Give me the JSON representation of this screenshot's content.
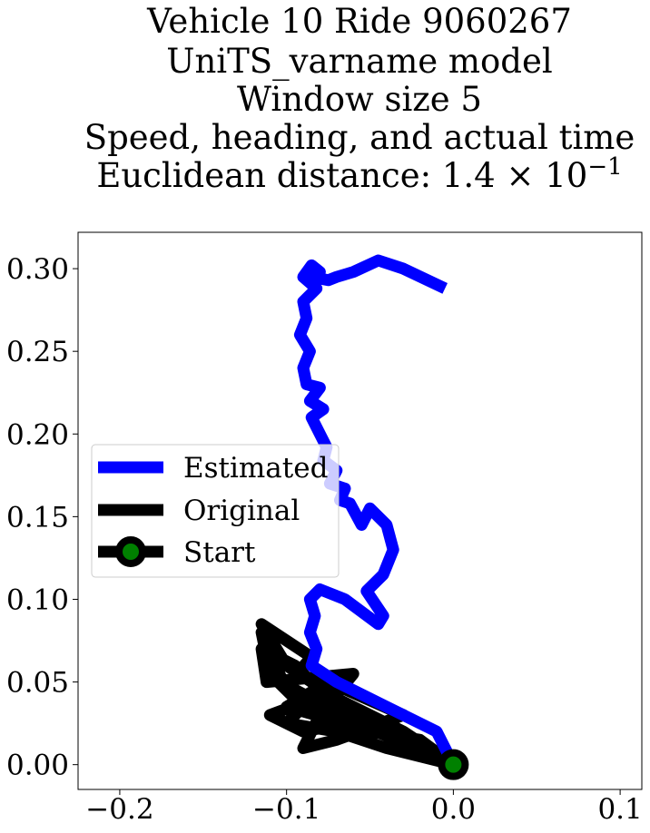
{
  "chart_data": {
    "type": "line",
    "title_lines": [
      "Vehicle 10 Ride 9060267",
      "UniTS_varname model",
      "Window size 5",
      "Speed, heading, and actual time",
      "Euclidean distance: 1.4 × 10"
    ],
    "title_exponent": "−1",
    "xlim": [
      -0.225,
      0.113
    ],
    "ylim": [
      -0.015,
      0.322
    ],
    "x_ticks": [
      -0.2,
      -0.1,
      0.0,
      0.1
    ],
    "x_tick_labels": [
      "−0.2",
      "−0.1",
      "0.0",
      "0.1"
    ],
    "y_ticks": [
      0.0,
      0.05,
      0.1,
      0.15,
      0.2,
      0.25,
      0.3
    ],
    "y_tick_labels": [
      "0.00",
      "0.05",
      "0.10",
      "0.15",
      "0.20",
      "0.25",
      "0.30"
    ],
    "grid": false,
    "legend_position": "center-left",
    "series": [
      {
        "name": "Original",
        "color": "#000000",
        "x": [
          0.0,
          -0.03,
          -0.07,
          -0.1,
          -0.115,
          -0.085,
          -0.1,
          -0.085,
          -0.07,
          -0.11,
          -0.09,
          -0.065,
          -0.1,
          -0.075,
          -0.03,
          -0.07,
          -0.09,
          -0.08,
          -0.06,
          -0.112,
          -0.115,
          -0.095,
          -0.08,
          -0.065,
          -0.02,
          -0.06,
          -0.1,
          -0.115,
          -0.11,
          -0.09,
          -0.05,
          -0.02,
          0.0,
          -0.04,
          -0.085,
          -0.1,
          -0.07,
          -0.04,
          0.0
        ],
        "y": [
          0.0,
          0.02,
          0.04,
          0.06,
          0.085,
          0.065,
          0.048,
          0.04,
          0.045,
          0.03,
          0.02,
          0.025,
          0.035,
          0.05,
          0.03,
          0.015,
          0.01,
          0.03,
          0.055,
          0.05,
          0.07,
          0.06,
          0.045,
          0.03,
          0.01,
          0.025,
          0.045,
          0.08,
          0.055,
          0.035,
          0.02,
          0.015,
          0.0,
          0.025,
          0.04,
          0.025,
          0.02,
          0.01,
          0.0
        ]
      },
      {
        "name": "Estimated",
        "color": "#0000ff",
        "x": [
          0.0,
          -0.01,
          -0.04,
          -0.07,
          -0.085,
          -0.082,
          -0.086,
          -0.083,
          -0.086,
          -0.08,
          -0.065,
          -0.045,
          -0.042,
          -0.052,
          -0.042,
          -0.036,
          -0.04,
          -0.05,
          -0.055,
          -0.062,
          -0.068,
          -0.065,
          -0.074,
          -0.07,
          -0.078,
          -0.076,
          -0.08,
          -0.085,
          -0.078,
          -0.086,
          -0.08,
          -0.088,
          -0.09,
          -0.086,
          -0.092,
          -0.088,
          -0.09,
          -0.082,
          -0.09,
          -0.085,
          -0.08,
          -0.085,
          -0.075,
          -0.07,
          -0.06,
          -0.045,
          -0.03,
          -0.005
        ],
        "y": [
          0.0,
          0.02,
          0.035,
          0.05,
          0.06,
          0.07,
          0.08,
          0.09,
          0.1,
          0.106,
          0.1,
          0.085,
          0.09,
          0.105,
          0.115,
          0.13,
          0.145,
          0.155,
          0.145,
          0.158,
          0.16,
          0.167,
          0.17,
          0.178,
          0.184,
          0.192,
          0.2,
          0.21,
          0.215,
          0.22,
          0.228,
          0.23,
          0.24,
          0.25,
          0.26,
          0.27,
          0.28,
          0.288,
          0.295,
          0.302,
          0.298,
          0.295,
          0.293,
          0.295,
          0.298,
          0.305,
          0.3,
          0.288
        ]
      }
    ],
    "start_marker": {
      "name": "Start",
      "x": 0.0,
      "y": 0.0,
      "fill_color": "#008000",
      "edge_color": "#000000"
    },
    "legend_entries": [
      "Estimated",
      "Original",
      "Start"
    ]
  }
}
